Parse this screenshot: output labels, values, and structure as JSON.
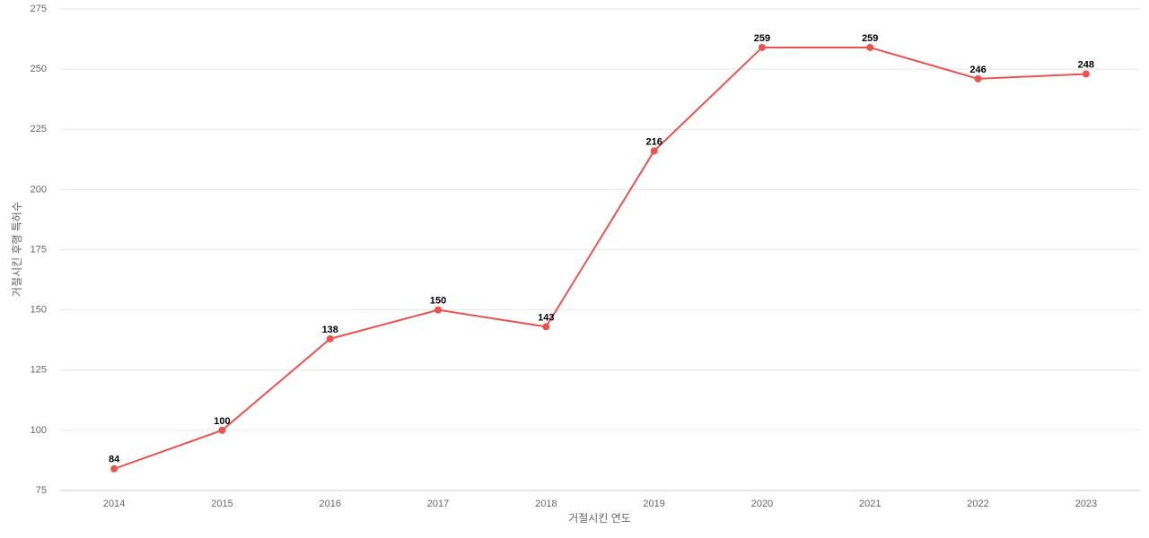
{
  "chart_data": {
    "type": "line",
    "x_label": "거절시킨 연도",
    "y_label": "거절시킨 후행 특허수",
    "categories": [
      "2014",
      "2015",
      "2016",
      "2017",
      "2018",
      "2019",
      "2020",
      "2021",
      "2022",
      "2023"
    ],
    "series": [
      {
        "name": "거절시킨 후행 특허수",
        "color": "#e8534f",
        "values": [
          84,
          100,
          138,
          150,
          143,
          216,
          259,
          259,
          246,
          248
        ]
      }
    ],
    "ylim": [
      75,
      275
    ],
    "yticks": [
      75,
      100,
      125,
      150,
      175,
      200,
      225,
      250,
      275
    ],
    "grid": true
  }
}
